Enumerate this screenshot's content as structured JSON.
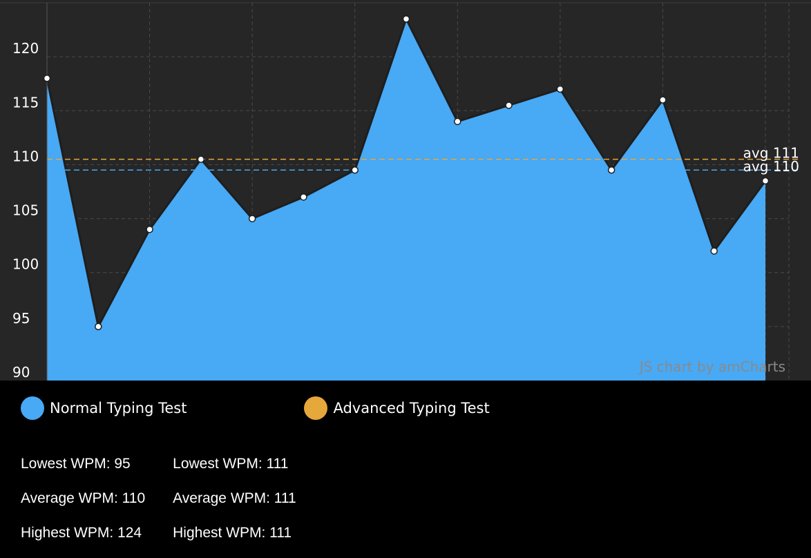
{
  "chart_data": {
    "type": "area",
    "x": [
      1,
      2,
      3,
      4,
      5,
      6,
      7,
      8,
      9,
      10,
      11,
      12,
      13,
      14,
      15
    ],
    "series": [
      {
        "name": "Normal Typing Test",
        "color": "#48a9f5",
        "values": [
          118,
          95,
          104,
          110.5,
          105,
          107,
          109.5,
          123.5,
          114,
          115.5,
          117,
          109.5,
          116,
          102,
          108.5
        ]
      }
    ],
    "guides": [
      {
        "label": "avg 111",
        "value": 110.5,
        "color": "#e6a73b"
      },
      {
        "label": "avg 110",
        "value": 109.5,
        "color": "#48a9f5"
      }
    ],
    "y_ticks": [
      "90",
      "95",
      "100",
      "105",
      "110",
      "115",
      "120"
    ],
    "ylim": [
      90,
      125
    ],
    "grid": true,
    "credit": "JS chart by amCharts"
  },
  "legend": [
    {
      "label": "Normal Typing Test",
      "color": "#48a9f5"
    },
    {
      "label": "Advanced Typing Test",
      "color": "#e6a73b"
    }
  ],
  "stats": {
    "normal": {
      "lowest": "Lowest WPM: 95",
      "average": "Average WPM: 110",
      "highest": "Highest WPM: 124"
    },
    "advanced": {
      "lowest": "Lowest WPM: 111",
      "average": "Average WPM: 111",
      "highest": "Highest WPM: 111"
    }
  }
}
